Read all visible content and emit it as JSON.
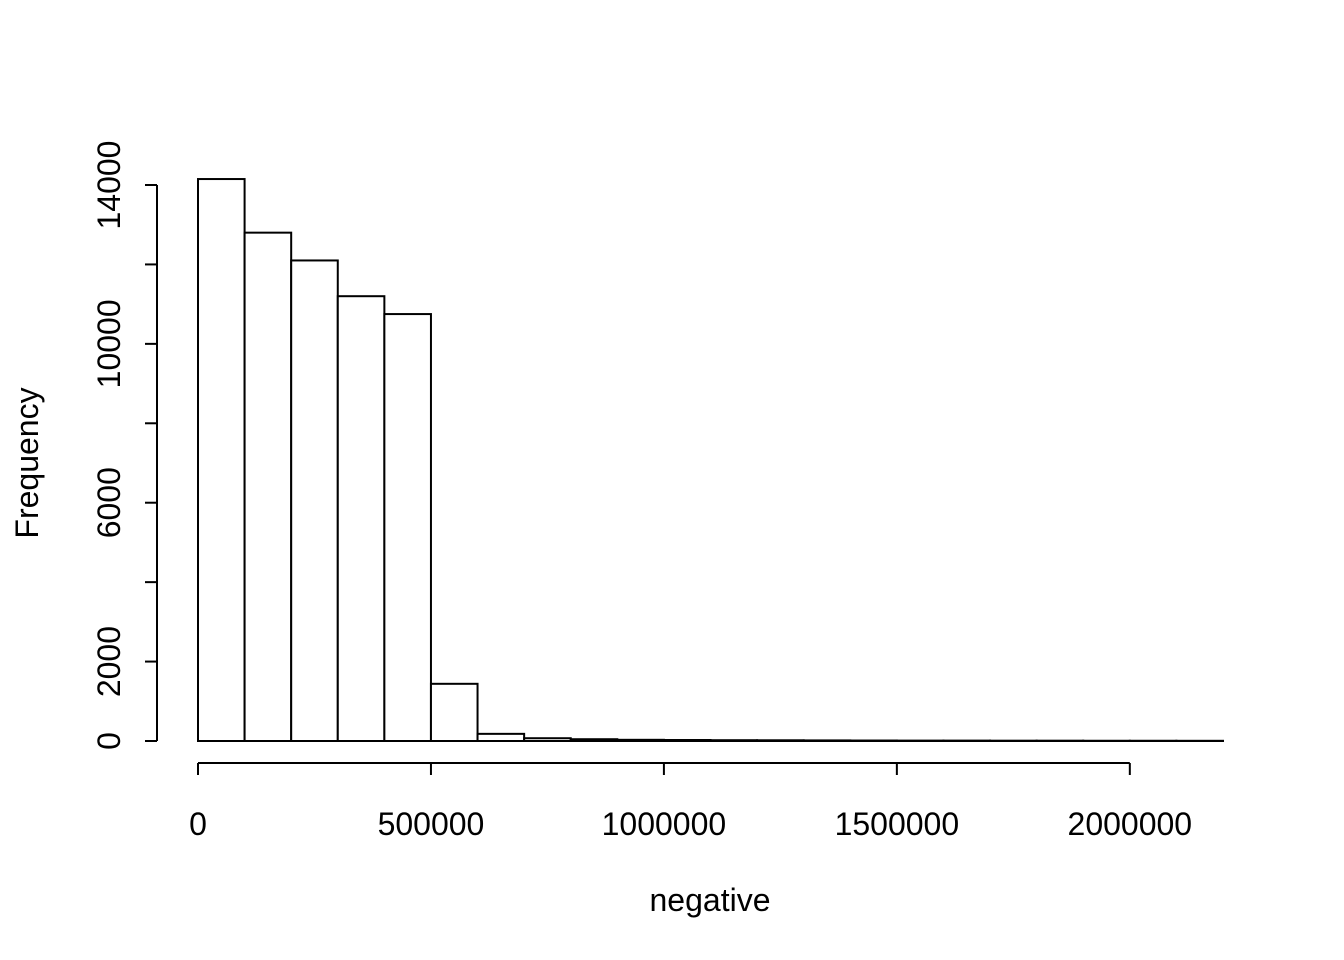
{
  "chart_data": {
    "type": "bar",
    "subtype": "histogram",
    "title": "",
    "xlabel": "negative",
    "ylabel": "Frequency",
    "bin_start": 0,
    "bin_width": 100000,
    "values": [
      14150,
      12800,
      12100,
      11200,
      10750,
      1440,
      180,
      70,
      45,
      30,
      25,
      20,
      18,
      15,
      12,
      10,
      10,
      8,
      8,
      6,
      6,
      5
    ],
    "x_ticks": [
      0,
      500000,
      1000000,
      1500000,
      2000000
    ],
    "x_tick_labels": [
      "0",
      "500000",
      "1000000",
      "1500000",
      "2000000"
    ],
    "y_ticks": [
      0,
      2000,
      4000,
      6000,
      8000,
      10000,
      12000,
      14000
    ],
    "y_labeled_ticks": [
      0,
      2000,
      6000,
      10000,
      14000
    ],
    "y_labeled_tick_labels": [
      "0",
      "2000",
      "6000",
      "10000",
      "14000"
    ],
    "xlim": [
      0,
      2200000
    ],
    "ylim": [
      0,
      14000
    ],
    "grid": false,
    "legend": null,
    "bar_fill": "#ffffff",
    "stroke": "#000000",
    "background": "#ffffff"
  }
}
